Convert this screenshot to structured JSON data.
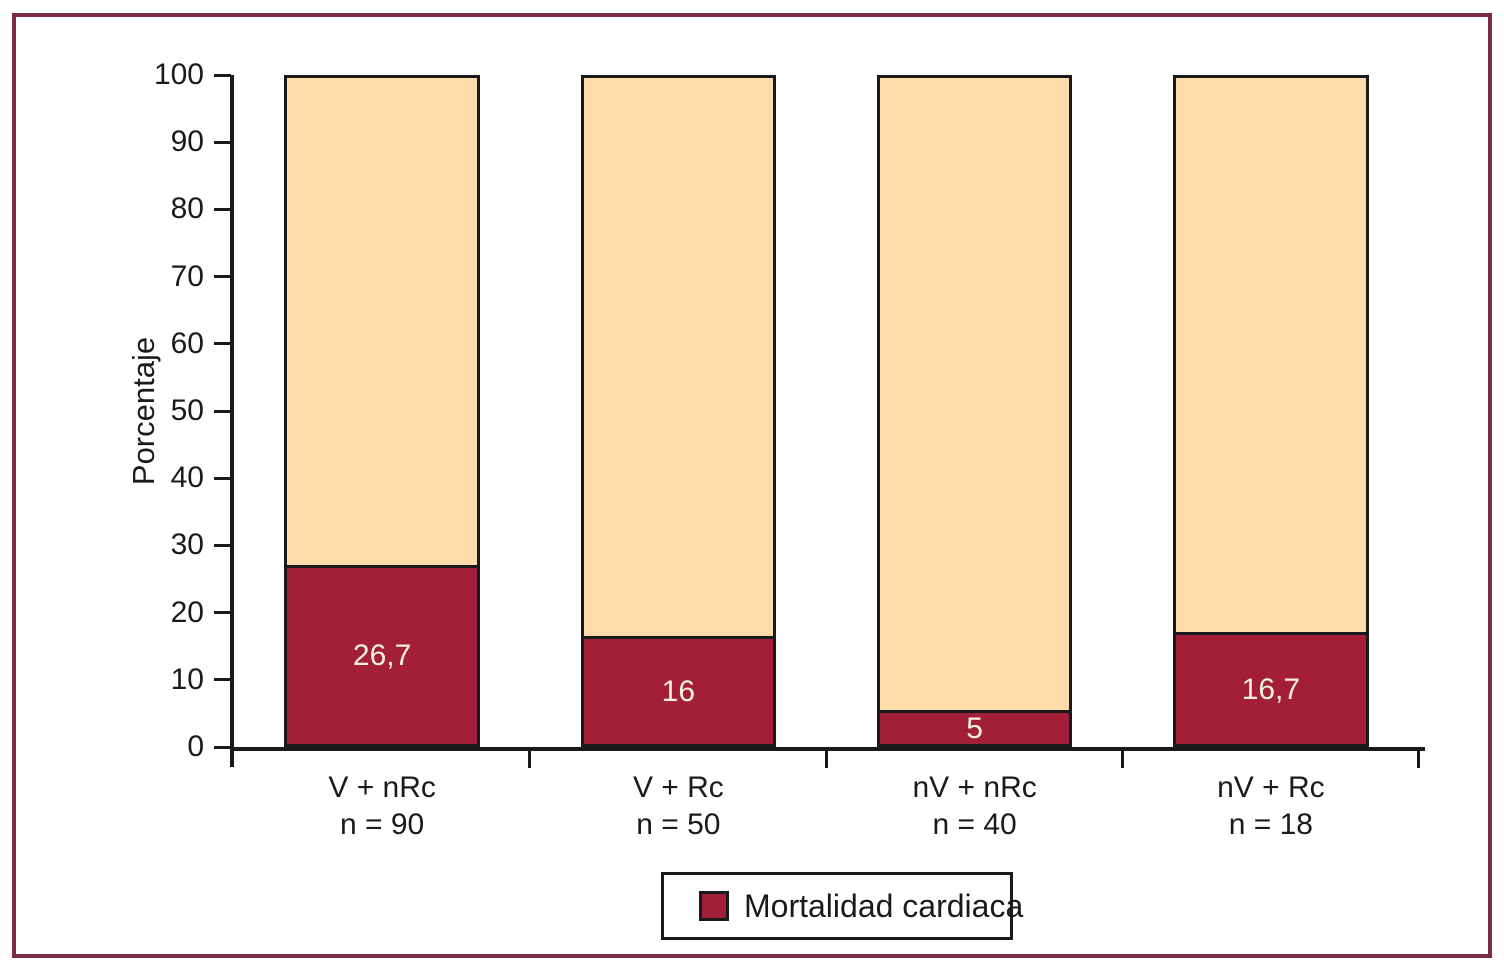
{
  "figure": {
    "frame_color": "#7C2B47",
    "background_color": "#FFFFFF",
    "axis_color": "#1A1A1A"
  },
  "chart_data": {
    "type": "bar",
    "stacked": true,
    "title": "",
    "xlabel": "",
    "ylabel": "Porcentaje",
    "ylim": [
      0,
      100
    ],
    "yticks": [
      0,
      10,
      20,
      30,
      40,
      50,
      60,
      70,
      80,
      90,
      100
    ],
    "grid": false,
    "categories": [
      "V + nRc",
      "V + Rc",
      "nV + nRc",
      "nV + Rc"
    ],
    "category_sublabels": [
      "n = 90",
      "n = 50",
      "n = 40",
      "n = 18"
    ],
    "series": [
      {
        "name": "Mortalidad cardiaca",
        "color": "#A21F37",
        "values": [
          26.7,
          16,
          5,
          16.7
        ],
        "value_labels": [
          "26,7",
          "16",
          "5",
          "16,7"
        ],
        "value_label_color": "#F5F0E1"
      },
      {
        "name": "",
        "color": "#FEDBA8",
        "values": [
          73.3,
          84,
          95,
          83.3
        ],
        "value_labels": [
          "",
          "",
          "",
          ""
        ],
        "value_label_color": ""
      }
    ],
    "legend": {
      "position": "bottom-center",
      "entries": [
        {
          "label": "Mortalidad cardiaca",
          "color": "#A21F37"
        }
      ]
    }
  }
}
